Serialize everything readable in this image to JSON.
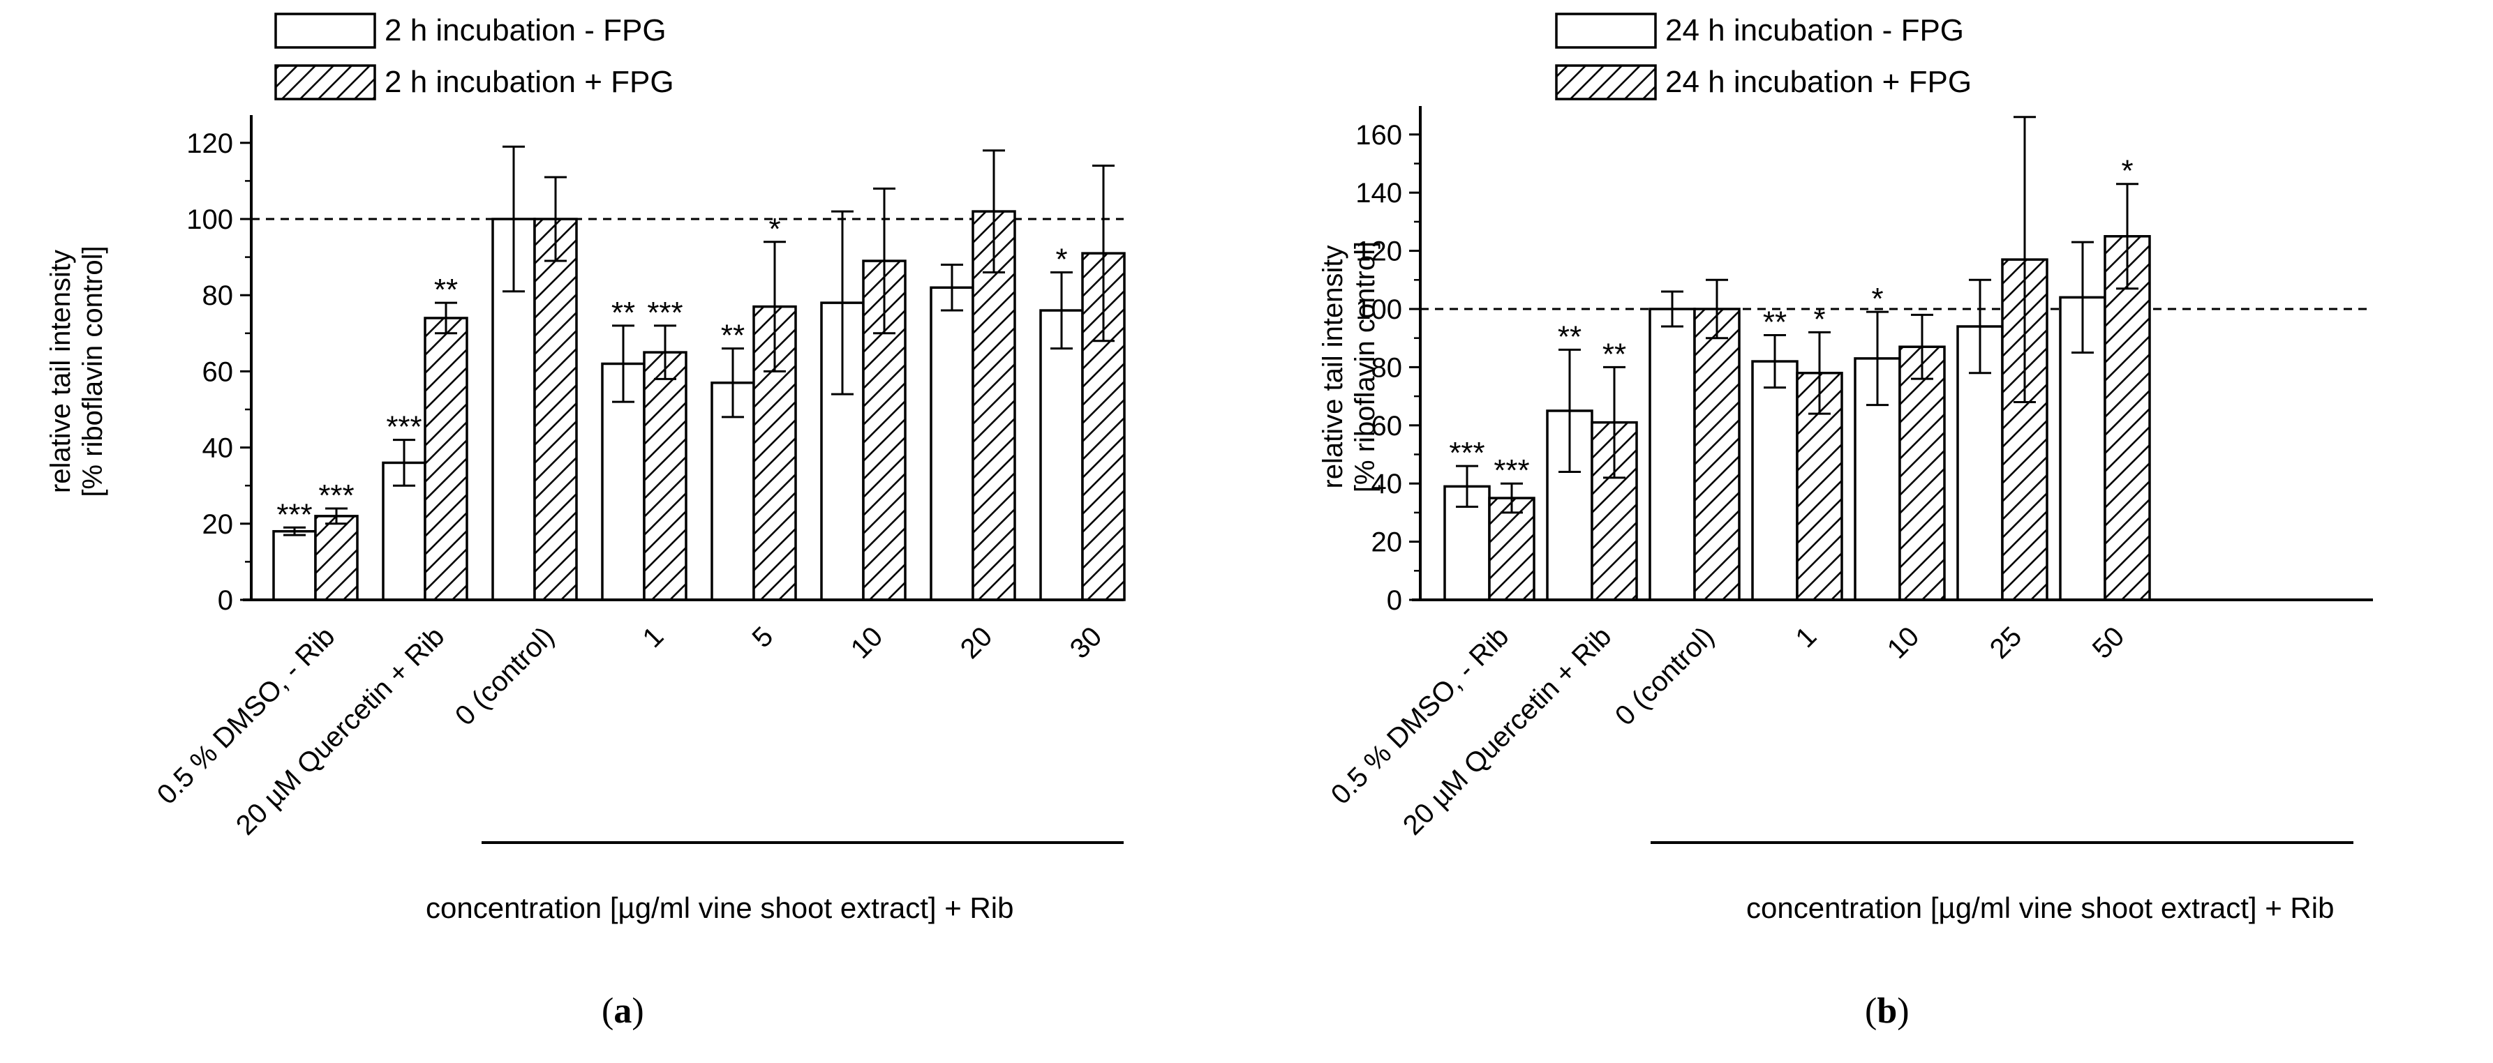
{
  "panels_caption": {
    "a": {
      "open": "(",
      "letter": "a",
      "close": ")"
    },
    "b": {
      "open": "(",
      "letter": "b",
      "close": ")"
    }
  },
  "chart_data": [
    {
      "type": "bar",
      "panel": "a",
      "ylabel_lines": [
        "relative tail intensity",
        "[% riboflavin control]"
      ],
      "xlabel": "concentration [µg/ml vine shoot extract] + Rib",
      "ylim": [
        0,
        130
      ],
      "yticks": [
        0,
        20,
        40,
        60,
        80,
        100,
        120
      ],
      "reference_line": 100,
      "categories": [
        "0.5 % DMSO, - Rib",
        "20 µM Quercetin + Rib",
        "0 (control)",
        "1",
        "5",
        "10",
        "20",
        "30"
      ],
      "series": [
        {
          "name": "2 h incubation - FPG",
          "pattern": "open",
          "values": [
            18,
            36,
            100,
            62,
            57,
            78,
            82,
            76
          ],
          "errors": [
            1,
            6,
            19,
            10,
            9,
            24,
            6,
            10
          ],
          "significance": [
            "***",
            "***",
            "",
            "**",
            "**",
            "",
            "",
            "*"
          ]
        },
        {
          "name": "2 h incubation + FPG",
          "pattern": "hatched",
          "values": [
            22,
            74,
            100,
            65,
            77,
            89,
            102,
            91
          ],
          "errors": [
            2,
            4,
            11,
            7,
            17,
            19,
            16,
            23
          ],
          "significance": [
            "***",
            "**",
            "",
            "***",
            "*",
            "",
            "",
            ""
          ]
        }
      ],
      "bracket_from_index": 2
    },
    {
      "type": "bar",
      "panel": "b",
      "ylabel_lines": [
        "relative tail intensity",
        "[% riboflavin control]"
      ],
      "xlabel": "concentration [µg/ml vine shoot extract] + Rib",
      "ylim": [
        0,
        170
      ],
      "yticks": [
        0,
        20,
        40,
        60,
        80,
        100,
        120,
        140,
        160
      ],
      "reference_line": 100,
      "categories": [
        "0.5 % DMSO, - Rib",
        "20 µM Quercetin + Rib",
        "0 (control)",
        "1",
        "10",
        "25",
        "50"
      ],
      "series": [
        {
          "name": "24 h incubation - FPG",
          "pattern": "open",
          "values": [
            39,
            65,
            100,
            82,
            83,
            94,
            104
          ],
          "errors": [
            7,
            21,
            6,
            9,
            16,
            16,
            19
          ],
          "significance": [
            "***",
            "**",
            "",
            "**",
            "*",
            "",
            ""
          ]
        },
        {
          "name": "24 h incubation + FPG",
          "pattern": "hatched",
          "values": [
            35,
            61,
            100,
            78,
            87,
            117,
            125
          ],
          "errors": [
            5,
            19,
            10,
            14,
            11,
            49,
            18
          ],
          "significance": [
            "***",
            "**",
            "",
            "*",
            "",
            "",
            "*"
          ]
        }
      ],
      "bracket_from_index": 2
    }
  ]
}
